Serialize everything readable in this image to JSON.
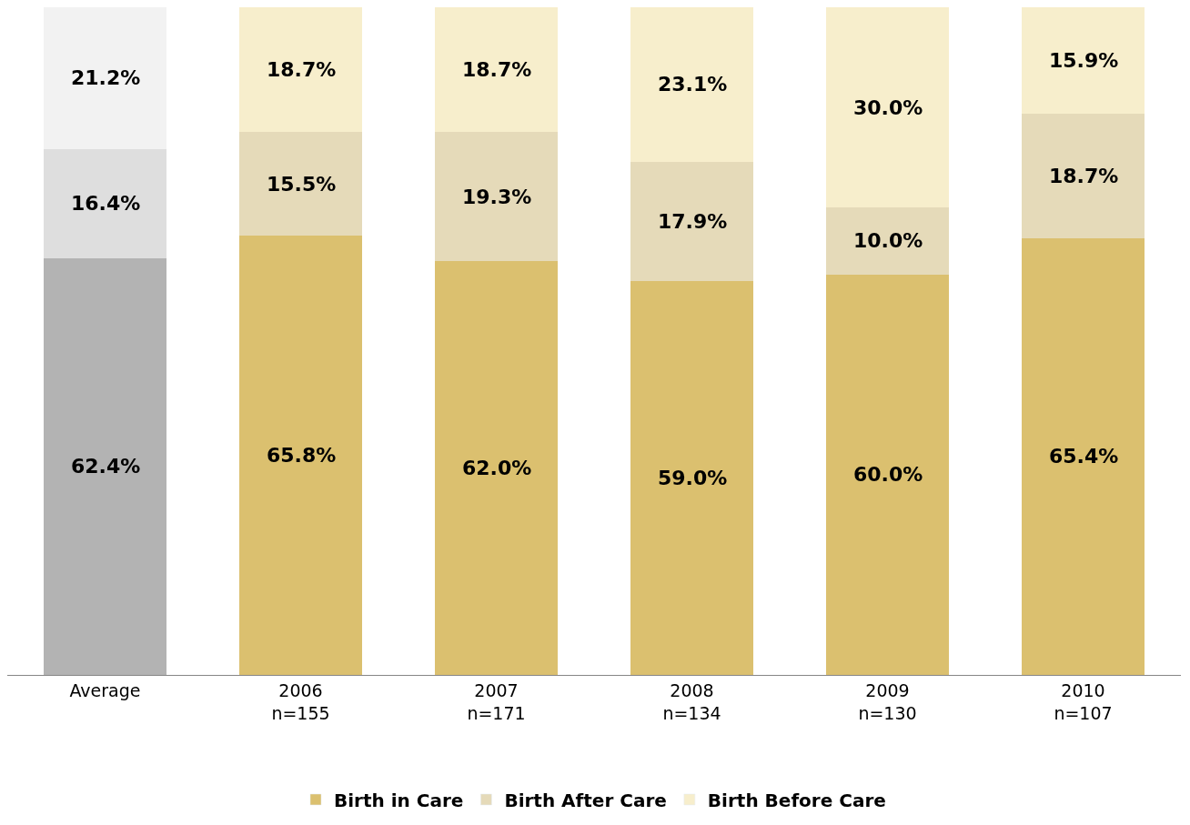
{
  "chart_data": {
    "type": "bar",
    "stacked": true,
    "categories": [
      "Average",
      "2006\nn=155",
      "2007\nn=171",
      "2008\nn=134",
      "2009\nn=130",
      "2010\nn=107"
    ],
    "ylim": [
      0,
      100
    ],
    "series": [
      {
        "name": "Birth in Care",
        "color": "#dbc06f",
        "colors": [
          "#b3b3b3",
          "#dbc06f",
          "#dbc06f",
          "#dbc06f",
          "#dbc06f",
          "#dbc06f"
        ],
        "values": [
          62.4,
          65.8,
          62.0,
          59.0,
          60.0,
          65.4
        ],
        "value_labels": [
          "62.4%",
          "65.8%",
          "62.0%",
          "59.0%",
          "60.0%",
          "65.4%"
        ]
      },
      {
        "name": "Birth After Care",
        "color": "#e5dab9",
        "colors": [
          "#dedede",
          "#e5dab9",
          "#e5dab9",
          "#e5dab9",
          "#e5dab9",
          "#e5dab9"
        ],
        "values": [
          16.4,
          15.5,
          19.3,
          17.9,
          10.0,
          18.7
        ],
        "value_labels": [
          "16.4%",
          "15.5%",
          "19.3%",
          "17.9%",
          "10.0%",
          "18.7%"
        ]
      },
      {
        "name": "Birth Before Care",
        "color": "#f7eecc",
        "colors": [
          "#f2f2f2",
          "#f7eecc",
          "#f7eecc",
          "#f7eecc",
          "#f7eecc",
          "#f7eecc"
        ],
        "values": [
          21.2,
          18.7,
          18.7,
          23.1,
          30.0,
          15.9
        ],
        "value_labels": [
          "21.2%",
          "18.7%",
          "18.7%",
          "23.1%",
          "30.0%",
          "15.9%"
        ]
      }
    ],
    "legend": "bottom"
  }
}
